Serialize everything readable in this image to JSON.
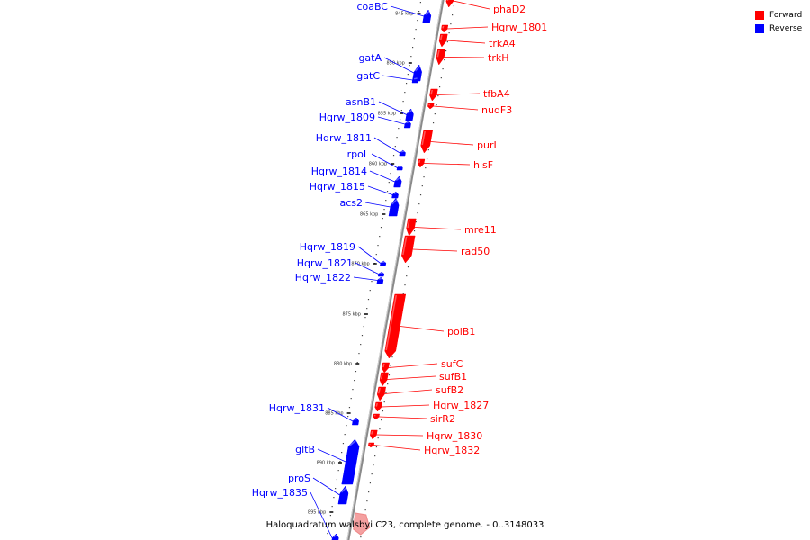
{
  "colors": {
    "forward": "#ff0000",
    "reverse": "#0000ff",
    "backbone": "#8a8a8a"
  },
  "legend": [
    {
      "label": "Forward",
      "color": "#ff0000"
    },
    {
      "label": "Reverse",
      "color": "#0000ff"
    }
  ],
  "caption": "Haloquadratum walsbyi C23, complete genome. - 0..3148033",
  "ticks": [
    "845 kbp",
    "850 kbp",
    "855 kbp",
    "860 kbp",
    "865 kbp",
    "870 kbp",
    "875 kbp",
    "880 kbp",
    "885 kbp",
    "890 kbp",
    "895 kbp"
  ],
  "forward_genes": [
    "phaD2",
    "Hqrw_1801",
    "trkA4",
    "trkH",
    "tfbA4",
    "nudF3",
    "purL",
    "hisF",
    "mre11",
    "rad50",
    "polB1",
    "sufC",
    "sufB1",
    "sufB2",
    "Hqrw_1827",
    "sirR2",
    "Hqrw_1830",
    "Hqrw_1832"
  ],
  "reverse_genes": [
    "coaBC",
    "gatA",
    "gatC",
    "asnB1",
    "Hqrw_1809",
    "Hqrw_1811",
    "rpoL",
    "Hqrw_1814",
    "Hqrw_1815",
    "acs2",
    "Hqrw_1819",
    "Hqrw_1821",
    "Hqrw_1822",
    "Hqrw_1831",
    "gltB",
    "proS",
    "Hqrw_1835"
  ]
}
